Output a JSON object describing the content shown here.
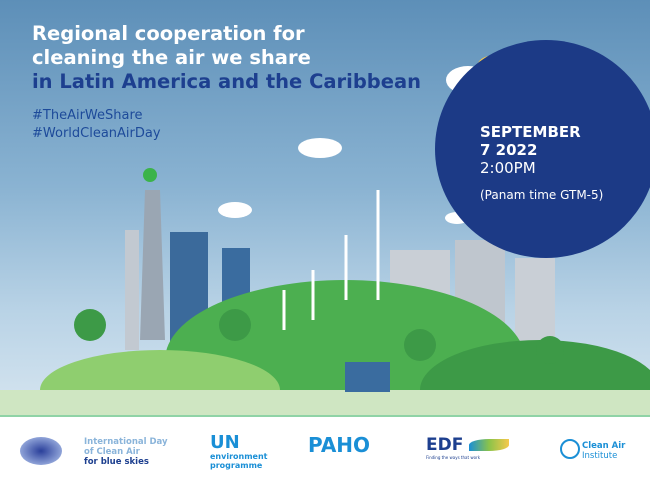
{
  "title": {
    "line1": "Regional cooperation for",
    "line2": "cleaning the air we share",
    "line3": "in Latin America and the Caribbean"
  },
  "hashtags": [
    "#TheAirWeShare",
    "#WorldCleanAirDay"
  ],
  "event": {
    "month": "SEPTEMBER",
    "day_year": "7 2022",
    "time": "2:00PM",
    "timezone": "(Panam time GTM-5)"
  },
  "logos": {
    "idca": {
      "line1": "International Day",
      "line2": "of Clean Air",
      "line3": "for blue skies"
    },
    "unep": {
      "top": "UN",
      "line1": "environment",
      "line2": "programme"
    },
    "paho": {
      "name": "PAHO"
    },
    "edf": {
      "name": "EDF",
      "tagline": "Finding the ways that work"
    },
    "cai": {
      "line1": "Clean Air",
      "line2": "Institute"
    }
  },
  "colors": {
    "navy": "#1c3a86",
    "sky": "#8ab3d2",
    "green": "#4caf50"
  }
}
